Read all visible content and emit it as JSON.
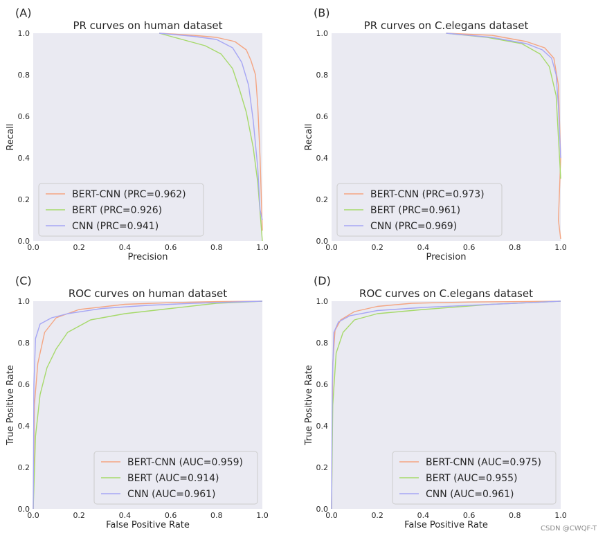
{
  "colors": {
    "BERT-CNN": "#f4a582",
    "BERT": "#a6d96a",
    "CNN": "#a6a6f4"
  },
  "watermark": "CSDN @CWQF-T",
  "chart_data": [
    {
      "panel": "(A)",
      "type": "line",
      "title": "PR curves on human dataset",
      "xlabel": "Precision",
      "ylabel": "Recall",
      "xlim": [
        0,
        1
      ],
      "ylim": [
        0,
        1
      ],
      "ticks": [
        "0.0",
        "0.2",
        "0.4",
        "0.6",
        "0.8",
        "1.0"
      ],
      "legend": "lower-left",
      "series": [
        {
          "name": "BERT-CNN",
          "label": "BERT-CNN (PRC=0.962)",
          "points": [
            [
              0.55,
              1.0
            ],
            [
              0.7,
              0.99
            ],
            [
              0.8,
              0.98
            ],
            [
              0.88,
              0.96
            ],
            [
              0.93,
              0.92
            ],
            [
              0.95,
              0.87
            ],
            [
              0.97,
              0.8
            ],
            [
              0.98,
              0.65
            ],
            [
              0.99,
              0.4
            ],
            [
              1.0,
              0.05
            ]
          ]
        },
        {
          "name": "BERT",
          "label": "BERT (PRC=0.926)",
          "points": [
            [
              0.55,
              1.0
            ],
            [
              0.65,
              0.97
            ],
            [
              0.75,
              0.94
            ],
            [
              0.82,
              0.9
            ],
            [
              0.87,
              0.83
            ],
            [
              0.9,
              0.73
            ],
            [
              0.93,
              0.62
            ],
            [
              0.96,
              0.45
            ],
            [
              0.98,
              0.28
            ],
            [
              1.0,
              0.0
            ]
          ]
        },
        {
          "name": "CNN",
          "label": "CNN (PRC=0.941)",
          "points": [
            [
              0.55,
              1.0
            ],
            [
              0.7,
              0.985
            ],
            [
              0.8,
              0.97
            ],
            [
              0.87,
              0.93
            ],
            [
              0.91,
              0.86
            ],
            [
              0.94,
              0.75
            ],
            [
              0.96,
              0.58
            ],
            [
              0.98,
              0.35
            ],
            [
              0.99,
              0.15
            ],
            [
              1.0,
              0.1
            ]
          ]
        }
      ]
    },
    {
      "panel": "(B)",
      "type": "line",
      "title": "PR curves on C.elegans dataset",
      "xlabel": "Precision",
      "ylabel": "Recall",
      "xlim": [
        0,
        1
      ],
      "ylim": [
        0,
        1
      ],
      "ticks": [
        "0.0",
        "0.2",
        "0.4",
        "0.6",
        "0.8",
        "1.0"
      ],
      "legend": "lower-left",
      "series": [
        {
          "name": "BERT-CNN",
          "label": "BERT-CNN (PRC=0.973)",
          "points": [
            [
              0.5,
              1.0
            ],
            [
              0.7,
              0.99
            ],
            [
              0.85,
              0.96
            ],
            [
              0.93,
              0.93
            ],
            [
              0.97,
              0.88
            ],
            [
              0.99,
              0.75
            ],
            [
              1.0,
              0.4
            ],
            [
              0.99,
              0.1
            ],
            [
              1.0,
              0.01
            ]
          ]
        },
        {
          "name": "BERT",
          "label": "BERT (PRC=0.961)",
          "points": [
            [
              0.5,
              1.0
            ],
            [
              0.68,
              0.98
            ],
            [
              0.83,
              0.95
            ],
            [
              0.91,
              0.9
            ],
            [
              0.95,
              0.84
            ],
            [
              0.98,
              0.7
            ],
            [
              0.99,
              0.5
            ],
            [
              1.0,
              0.3
            ]
          ]
        },
        {
          "name": "CNN",
          "label": "CNN (PRC=0.969)",
          "points": [
            [
              0.5,
              1.0
            ],
            [
              0.7,
              0.98
            ],
            [
              0.85,
              0.95
            ],
            [
              0.92,
              0.92
            ],
            [
              0.96,
              0.88
            ],
            [
              0.98,
              0.8
            ],
            [
              0.99,
              0.65
            ],
            [
              1.0,
              0.4
            ]
          ]
        }
      ]
    },
    {
      "panel": "(C)",
      "type": "line",
      "title": "ROC curves on human dataset",
      "xlabel": "False Positive Rate",
      "ylabel": "True Positive Rate",
      "xlim": [
        0,
        1
      ],
      "ylim": [
        0,
        1
      ],
      "ticks": [
        "0.0",
        "0.2",
        "0.4",
        "0.6",
        "0.8",
        "1.0"
      ],
      "legend": "lower-right",
      "series": [
        {
          "name": "BERT-CNN",
          "label": "BERT-CNN (AUC=0.959)",
          "points": [
            [
              0.0,
              0.0
            ],
            [
              0.005,
              0.5
            ],
            [
              0.02,
              0.7
            ],
            [
              0.05,
              0.85
            ],
            [
              0.1,
              0.92
            ],
            [
              0.2,
              0.96
            ],
            [
              0.4,
              0.985
            ],
            [
              0.6,
              0.993
            ],
            [
              0.8,
              0.998
            ],
            [
              1.0,
              1.0
            ]
          ]
        },
        {
          "name": "BERT",
          "label": "BERT (AUC=0.914)",
          "points": [
            [
              0.0,
              0.0
            ],
            [
              0.01,
              0.35
            ],
            [
              0.03,
              0.55
            ],
            [
              0.06,
              0.68
            ],
            [
              0.1,
              0.77
            ],
            [
              0.15,
              0.85
            ],
            [
              0.25,
              0.91
            ],
            [
              0.4,
              0.94
            ],
            [
              0.6,
              0.965
            ],
            [
              0.8,
              0.99
            ],
            [
              1.0,
              1.0
            ]
          ]
        },
        {
          "name": "CNN",
          "label": "CNN (AUC=0.961)",
          "points": [
            [
              0.0,
              0.0
            ],
            [
              0.003,
              0.6
            ],
            [
              0.01,
              0.82
            ],
            [
              0.03,
              0.89
            ],
            [
              0.08,
              0.92
            ],
            [
              0.15,
              0.94
            ],
            [
              0.3,
              0.965
            ],
            [
              0.5,
              0.98
            ],
            [
              0.7,
              0.99
            ],
            [
              1.0,
              1.0
            ]
          ]
        }
      ]
    },
    {
      "panel": "(D)",
      "type": "line",
      "title": "ROC curves on C.elegans dataset",
      "xlabel": "False Positive Rate",
      "ylabel": "True Positive Rate",
      "xlim": [
        0,
        1
      ],
      "ylim": [
        0,
        1
      ],
      "ticks": [
        "0.0",
        "0.2",
        "0.4",
        "0.6",
        "0.8",
        "1.0"
      ],
      "legend": "lower-right",
      "series": [
        {
          "name": "BERT-CNN",
          "label": "BERT-CNN (AUC=0.975)",
          "points": [
            [
              0.0,
              0.0
            ],
            [
              0.005,
              0.7
            ],
            [
              0.015,
              0.86
            ],
            [
              0.04,
              0.91
            ],
            [
              0.1,
              0.95
            ],
            [
              0.2,
              0.975
            ],
            [
              0.35,
              0.99
            ],
            [
              0.6,
              0.996
            ],
            [
              1.0,
              1.0
            ]
          ]
        },
        {
          "name": "BERT",
          "label": "BERT (AUC=0.955)",
          "points": [
            [
              0.0,
              0.0
            ],
            [
              0.005,
              0.5
            ],
            [
              0.02,
              0.75
            ],
            [
              0.05,
              0.85
            ],
            [
              0.1,
              0.91
            ],
            [
              0.2,
              0.94
            ],
            [
              0.4,
              0.96
            ],
            [
              0.7,
              0.985
            ],
            [
              1.0,
              1.0
            ]
          ]
        },
        {
          "name": "CNN",
          "label": "CNN (AUC=0.961)",
          "points": [
            [
              0.0,
              0.0
            ],
            [
              0.003,
              0.6
            ],
            [
              0.01,
              0.85
            ],
            [
              0.03,
              0.9
            ],
            [
              0.08,
              0.93
            ],
            [
              0.2,
              0.955
            ],
            [
              0.4,
              0.97
            ],
            [
              0.7,
              0.985
            ],
            [
              1.0,
              1.0
            ]
          ]
        }
      ]
    }
  ]
}
